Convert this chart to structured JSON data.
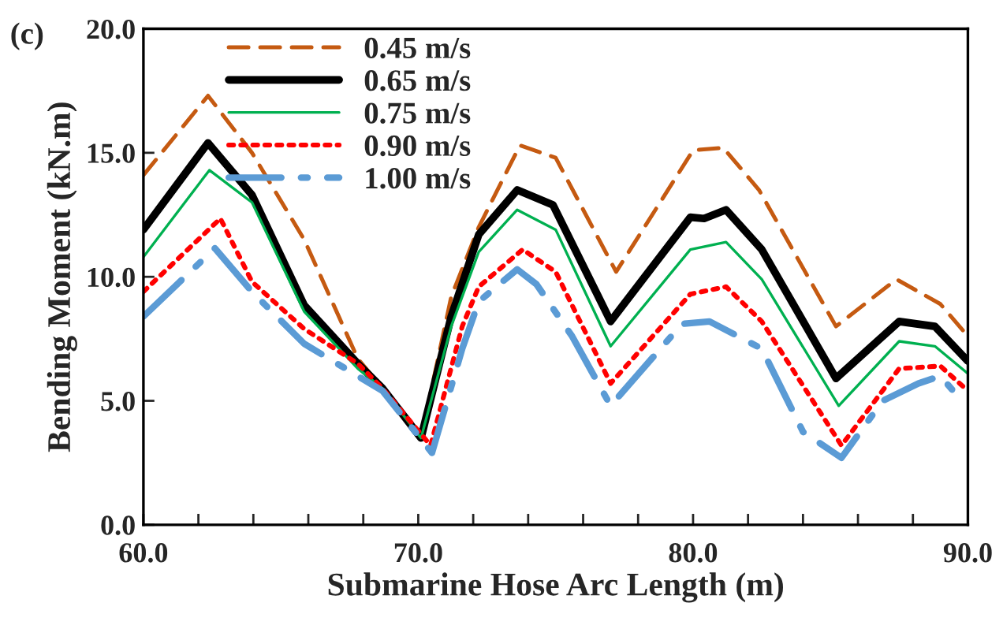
{
  "chart_data": {
    "type": "line",
    "xlabel": "Submarine Hose Arc Length (m)",
    "ylabel": "Bending Moment (kN.m)",
    "annotations": [
      "(c)"
    ],
    "xlim": [
      60,
      90
    ],
    "ylim": [
      0,
      20
    ],
    "xticks": [
      {
        "value": 60,
        "label": "60.0"
      },
      {
        "value": 62,
        "label": null
      },
      {
        "value": 64,
        "label": null
      },
      {
        "value": 66,
        "label": null
      },
      {
        "value": 68,
        "label": null
      },
      {
        "value": 70,
        "label": "70.0"
      },
      {
        "value": 72,
        "label": null
      },
      {
        "value": 74,
        "label": null
      },
      {
        "value": 76,
        "label": null
      },
      {
        "value": 78,
        "label": null
      },
      {
        "value": 80,
        "label": "80.0"
      },
      {
        "value": 82,
        "label": null
      },
      {
        "value": 84,
        "label": null
      },
      {
        "value": 86,
        "label": null
      },
      {
        "value": 88,
        "label": null
      },
      {
        "value": 90,
        "label": "90.0"
      }
    ],
    "yticks": [
      {
        "value": 0,
        "label": "0.0"
      },
      {
        "value": 5,
        "label": "5.0"
      },
      {
        "value": 10,
        "label": "10.0"
      },
      {
        "value": 15,
        "label": "15.0"
      },
      {
        "value": 20,
        "label": "20.0"
      }
    ],
    "grid": false,
    "legend": "top left",
    "marker": "none",
    "series": [
      {
        "name": "0.45 m/s",
        "color": "#c55a11",
        "line_style": "dashed",
        "x": [
          60,
          62.35,
          63.95,
          65.85,
          67.8,
          68.7,
          70.1,
          71.2,
          72.2,
          73.7,
          75,
          77.2,
          80.0,
          81.1,
          82.4,
          85.2,
          87.4,
          89.0,
          90
        ],
        "values": [
          14.1,
          17.3,
          15.0,
          11.5,
          6.7,
          5.5,
          3.5,
          9.2,
          12.0,
          15.3,
          14.8,
          10.2,
          15.1,
          15.2,
          13.5,
          8.0,
          9.9,
          8.9,
          7.6
        ]
      },
      {
        "name": "0.65 m/s",
        "color": "#000000",
        "line_style": "solid",
        "x": [
          60,
          62.35,
          63.95,
          65.85,
          67.8,
          68.7,
          70.1,
          71.2,
          72.2,
          73.6,
          74.9,
          77.0,
          79.9,
          80.4,
          81.2,
          82.5,
          85.2,
          87.5,
          88.8,
          90
        ],
        "values": [
          11.9,
          15.4,
          13.3,
          8.85,
          6.5,
          5.5,
          3.5,
          8.4,
          11.7,
          13.5,
          12.9,
          8.2,
          12.4,
          12.35,
          12.7,
          11.1,
          5.9,
          8.2,
          8.0,
          6.6
        ]
      },
      {
        "name": "0.75 m/s",
        "color": "#00b050",
        "line_style": "solid",
        "x": [
          60,
          62.4,
          63.95,
          65.85,
          67.8,
          68.7,
          70.1,
          71.2,
          72.2,
          73.6,
          75,
          77.0,
          79.9,
          81.2,
          82.5,
          85.3,
          87.5,
          88.8,
          90
        ],
        "values": [
          10.8,
          14.3,
          13.0,
          8.6,
          6.3,
          5.5,
          3.5,
          8.0,
          11.0,
          12.7,
          11.9,
          7.2,
          11.1,
          11.4,
          9.9,
          4.8,
          7.4,
          7.2,
          6.1
        ]
      },
      {
        "name": "0.90 m/s",
        "color": "#ff0000",
        "line_style": "dotted",
        "x": [
          60,
          62.8,
          63.95,
          65.85,
          67.8,
          68.7,
          70.45,
          71.6,
          72.2,
          73.8,
          75,
          77.0,
          79.9,
          81.2,
          82.5,
          85.4,
          87.5,
          89,
          90
        ],
        "values": [
          9.4,
          12.35,
          9.8,
          7.9,
          6.5,
          5.5,
          3.2,
          8.0,
          9.6,
          11.1,
          10.2,
          5.7,
          9.3,
          9.6,
          8.2,
          3.2,
          6.3,
          6.4,
          5.4
        ]
      },
      {
        "name": "1.00 m/s",
        "color": "#5b9bd5",
        "line_style": "dashdot",
        "x": [
          60,
          62.6,
          63.95,
          65.85,
          67.8,
          68.7,
          70.5,
          71.6,
          72.2,
          73.6,
          74.3,
          75.6,
          77.0,
          79.6,
          80.6,
          82.5,
          84.0,
          85.4,
          86.9,
          88.2,
          89,
          89.7
        ],
        "values": [
          8.4,
          11.15,
          9.4,
          7.3,
          6.0,
          5.4,
          2.9,
          7.1,
          9.0,
          10.3,
          9.7,
          7.6,
          4.8,
          8.1,
          8.2,
          7.1,
          3.75,
          2.7,
          5.0,
          5.7,
          6.0,
          5.1
        ]
      }
    ]
  }
}
